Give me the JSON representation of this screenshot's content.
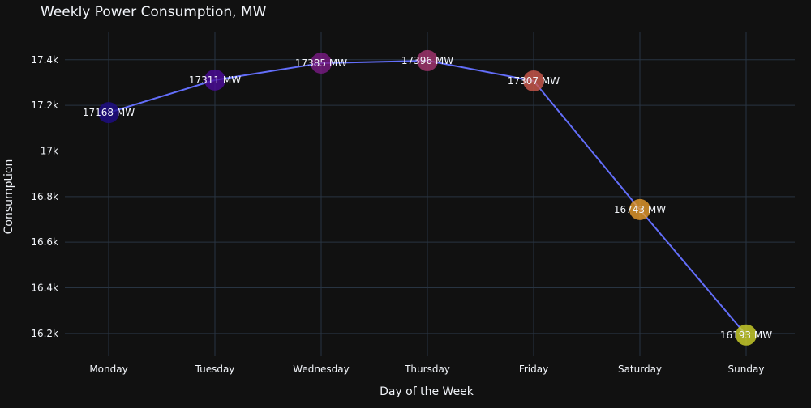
{
  "chart_data": {
    "type": "line",
    "title": "Weekly Power Consumption, MW",
    "xlabel": "Day of the Week",
    "ylabel": "Consumption",
    "categories": [
      "Monday",
      "Tuesday",
      "Wednesday",
      "Thursday",
      "Friday",
      "Saturday",
      "Sunday"
    ],
    "values": [
      17168,
      17311,
      17385,
      17396,
      17307,
      16743,
      16193
    ],
    "data_labels": [
      "17168 MW",
      "17311 MW",
      "17385 MW",
      "17396 MW",
      "17307 MW",
      "16743 MW",
      "16193 MW"
    ],
    "ylim": [
      16100,
      17520
    ],
    "yticks": [
      16200,
      16400,
      16600,
      16800,
      17000,
      17200,
      17400
    ],
    "ytick_labels": [
      "16.2k",
      "16.4k",
      "16.6k",
      "16.8k",
      "17k",
      "17.2k",
      "17.4k"
    ],
    "grid": true,
    "colors": {
      "background": "#111111",
      "grid": "#283442",
      "line": "#636efa",
      "text": "#f2f5fa",
      "markers": [
        "#1f0c8a",
        "#4c0b9b",
        "#7a1a86",
        "#a63672",
        "#cf5a4d",
        "#e89c2d",
        "#d0d52a"
      ]
    }
  }
}
